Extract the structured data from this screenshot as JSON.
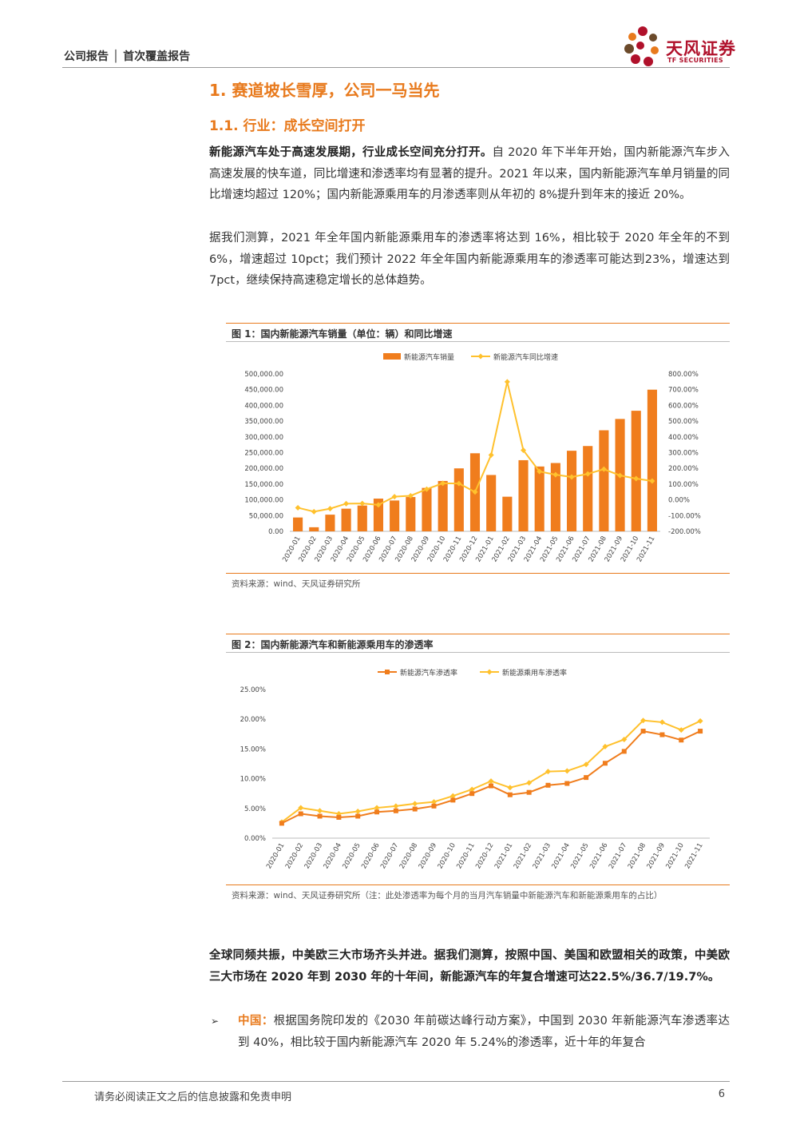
{
  "header": {
    "left": "公司报告 │ 首次覆盖报告",
    "logo_cn": "天风证券",
    "logo_en": "TF SECURITIES"
  },
  "section": {
    "h1": "1. 赛道坡长雪厚，公司一马当先",
    "h2": "1.1. 行业：成长空间打开"
  },
  "paras": {
    "p1_bold": "新能源汽车处于高速发展期，行业成长空间充分打开。",
    "p1_rest": "自 2020 年下半年开始，国内新能源汽车步入高速发展的快车道，同比增速和渗透率均有显著的提升。2021 年以来，国内新能源汽车单月销量的同比增速均超过 120%；国内新能源乘用车的月渗透率则从年初的 8%提升到年末的接近 20%。",
    "p2": "据我们测算，2021 年全年国内新能源乘用车的渗透率将达到 16%，相比较于 2020 年全年的不到 6%，增速超过 10pct；我们预计 2022 年全年国内新能源乘用车的渗透率可能达到23%，增速达到 7pct，继续保持高速稳定增长的总体趋势。",
    "p3_bold": "全球同频共振，中美欧三大市场齐头并进。据我们测算，按照中国、美国和欧盟相关的政策，中美欧三大市场在 2020 年到 2030 年的十年间，新能源汽车的年复合增速可达22.5%/36.7/19.7%。",
    "p4_label": "中国：",
    "p4_rest": "根据国务院印发的《2030 年前碳达峰行动方案》，中国到 2030 年新能源汽车渗透率达到 40%，相比较于国内新能源汽车 2020 年 5.24%的渗透率，近十年的年复合"
  },
  "fig1": {
    "title": "图 1：国内新能源汽车销量（单位：辆）和同比增速",
    "source": "资料来源：wind、天风证券研究所"
  },
  "fig2": {
    "title": "图 2：国内新能源汽车和新能源乘用车的渗透率",
    "source": "资料来源：wind、天风证券研究所（注：此处渗透率为每个月的当月汽车销量中新能源汽车和新能源乘用车的占比）"
  },
  "footer": {
    "disclaimer": "请务必阅读正文之后的信息披露和免责申明",
    "page": "6"
  },
  "chart_data": [
    {
      "type": "bar+line",
      "categories": [
        "2020-01",
        "2020-02",
        "2020-03",
        "2020-04",
        "2020-05",
        "2020-06",
        "2020-07",
        "2020-08",
        "2020-09",
        "2020-10",
        "2020-11",
        "2020-12",
        "2021-01",
        "2021-02",
        "2021-03",
        "2021-04",
        "2021-05",
        "2021-06",
        "2021-07",
        "2021-08",
        "2021-09",
        "2021-10",
        "2021-11"
      ],
      "series": [
        {
          "name": "新能源汽车销量",
          "axis": "left",
          "kind": "bar",
          "color": "#f07d1d",
          "values": [
            44000,
            13000,
            53000,
            72000,
            82000,
            104000,
            98000,
            109000,
            138000,
            160000,
            200000,
            248000,
            179000,
            110000,
            226000,
            206000,
            217000,
            256000,
            271000,
            321000,
            357000,
            383000,
            450000
          ]
        },
        {
          "name": "新能源汽车同比增速",
          "axis": "right",
          "kind": "line",
          "color": "#ffc12d",
          "values": [
            -0.5,
            -0.75,
            -0.56,
            -0.24,
            -0.23,
            -0.32,
            0.2,
            0.26,
            0.68,
            1.05,
            1.04,
            0.5,
            2.85,
            7.5,
            3.15,
            1.8,
            1.6,
            1.45,
            1.65,
            1.95,
            1.55,
            1.35,
            1.2
          ]
        }
      ],
      "yleft": {
        "ticks": [
          "500,000.00",
          "450,000.00",
          "400,000.00",
          "350,000.00",
          "300,000.00",
          "250,000.00",
          "200,000.00",
          "150,000.00",
          "100,000.00",
          "50,000.00",
          "0.00"
        ],
        "range": [
          0,
          500000
        ]
      },
      "yright": {
        "ticks": [
          "800.00%",
          "700.00%",
          "600.00%",
          "500.00%",
          "400.00%",
          "300.00%",
          "200.00%",
          "100.00%",
          "0.00%",
          "-100.00%",
          "-200.00%"
        ],
        "range": [
          -2,
          8
        ]
      },
      "legend": "top-center",
      "grid": false
    },
    {
      "type": "line",
      "categories": [
        "2020-01",
        "2020-02",
        "2020-03",
        "2020-04",
        "2020-05",
        "2020-06",
        "2020-07",
        "2020-08",
        "2020-09",
        "2020-10",
        "2020-11",
        "2020-12",
        "2021-01",
        "2021-02",
        "2021-03",
        "2021-04",
        "2021-05",
        "2021-06",
        "2021-07",
        "2021-08",
        "2021-09",
        "2021-10",
        "2021-11"
      ],
      "series": [
        {
          "name": "新能源汽车渗透率",
          "color": "#f07d1d",
          "values": [
            0.025,
            0.041,
            0.037,
            0.035,
            0.037,
            0.044,
            0.046,
            0.049,
            0.054,
            0.064,
            0.075,
            0.088,
            0.073,
            0.077,
            0.089,
            0.092,
            0.102,
            0.126,
            0.146,
            0.18,
            0.174,
            0.165,
            0.18
          ]
        },
        {
          "name": "新能源乘用车渗透率",
          "color": "#ffc12d",
          "values": [
            0.027,
            0.051,
            0.046,
            0.041,
            0.045,
            0.051,
            0.054,
            0.058,
            0.061,
            0.071,
            0.082,
            0.096,
            0.085,
            0.093,
            0.112,
            0.113,
            0.124,
            0.154,
            0.166,
            0.198,
            0.195,
            0.182,
            0.197
          ]
        }
      ],
      "y": {
        "ticks": [
          "25.00%",
          "20.00%",
          "15.00%",
          "10.00%",
          "5.00%",
          "0.00%"
        ],
        "range": [
          0,
          0.25
        ]
      },
      "legend": "top-center",
      "grid": false
    }
  ]
}
